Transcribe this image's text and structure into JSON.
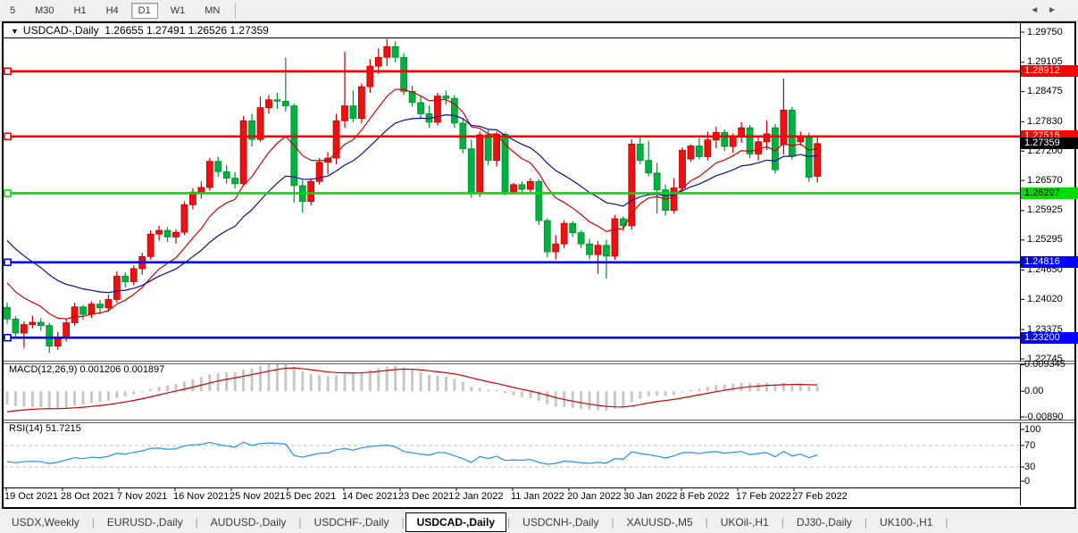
{
  "toolbar": {
    "timeframes": [
      "5",
      "M30",
      "H1",
      "H4",
      "D1",
      "W1",
      "MN"
    ],
    "active_timeframe": "D1"
  },
  "chart": {
    "symbol": "USDCAD-,Daily",
    "ohlc_text": "1.26655 1.27491 1.26526 1.27359",
    "macd_label": "MACD(12,26,9) 0.001206 0.001897",
    "rsi_label": "RSI(14) 51.7215"
  },
  "icons": {
    "dropdown_triangle": "▼",
    "tab_scroll_left": "◄",
    "tab_scroll_right": "►"
  },
  "tabs": {
    "items": [
      "USDX,Weekly",
      "EURUSD-,Daily",
      "AUDUSD-,Daily",
      "USDCHF-,Daily",
      "USDCAD-,Daily",
      "USDCNH-,Daily",
      "XAUUSD-,M5",
      "UKOil-,H1",
      "DJ30-,Daily",
      "UK100-,H1"
    ],
    "active": "USDCAD-,Daily"
  },
  "chart_data": {
    "type": "candlestick",
    "title": "USDCAD-,Daily",
    "current_ohlc": {
      "open": 1.26655,
      "high": 1.27491,
      "low": 1.26526,
      "close": 1.27359
    },
    "x_labels": [
      "19 Oct 2021",
      "28 Oct 2021",
      "7 Nov 2021",
      "16 Nov 2021",
      "25 Nov 2021",
      "5 Dec 2021",
      "14 Dec 2021",
      "23 Dec 2021",
      "2 Jan 2022",
      "11 Jan 2022",
      "20 Jan 2022",
      "30 Jan 2022",
      "8 Feb 2022",
      "17 Feb 2022",
      "27 Feb 2022"
    ],
    "price_axis": {
      "ticks": [
        "1.29750",
        "1.29105",
        "1.28475",
        "1.27830",
        "1.27200",
        "1.26570",
        "1.25925",
        "1.25295",
        "1.24650",
        "1.24020",
        "1.23375",
        "1.22745"
      ],
      "ylim": [
        1.22745,
        1.2975
      ]
    },
    "current_price_flag": {
      "label": "1.27359",
      "price": 1.27359,
      "bg": "#000000",
      "text": "#ffffff"
    },
    "hlines": [
      {
        "label": "1.28912",
        "price": 1.28912,
        "color": "#ff0000",
        "text": "#ffffff"
      },
      {
        "label": "1.27515",
        "price": 1.27515,
        "color": "#ff0000",
        "text": "#ffffff"
      },
      {
        "label": "1.26297",
        "price": 1.26297,
        "color": "#00dd00",
        "text": "#000000"
      },
      {
        "label": "1.24816",
        "price": 1.24816,
        "color": "#0000ff",
        "text": "#ffffff"
      },
      {
        "label": "1.23200",
        "price": 1.232,
        "color": "#0000ff",
        "text": "#ffffff"
      }
    ],
    "candles": [
      [
        1.2385,
        1.2395,
        1.235,
        1.236
      ],
      [
        1.236,
        1.2366,
        1.232,
        1.233
      ],
      [
        1.233,
        1.2355,
        1.2298,
        1.2348
      ],
      [
        1.2348,
        1.2367,
        1.234,
        1.2353
      ],
      [
        1.2353,
        1.2362,
        1.2335,
        1.2346
      ],
      [
        1.2346,
        1.2352,
        1.2287,
        1.2302
      ],
      [
        1.2302,
        1.2332,
        1.2294,
        1.232
      ],
      [
        1.232,
        1.236,
        1.2312,
        1.2352
      ],
      [
        1.2352,
        1.2395,
        1.2345,
        1.2386
      ],
      [
        1.2386,
        1.239,
        1.2358,
        1.237
      ],
      [
        1.237,
        1.2398,
        1.2362,
        1.2392
      ],
      [
        1.2392,
        1.2401,
        1.237,
        1.2384
      ],
      [
        1.2384,
        1.2412,
        1.2376,
        1.2402
      ],
      [
        1.2402,
        1.2462,
        1.2395,
        1.2452
      ],
      [
        1.2452,
        1.246,
        1.2428,
        1.244
      ],
      [
        1.244,
        1.2475,
        1.2432,
        1.2468
      ],
      [
        1.2468,
        1.2502,
        1.2455,
        1.2494
      ],
      [
        1.2494,
        1.255,
        1.2488,
        1.2542
      ],
      [
        1.2542,
        1.256,
        1.2528,
        1.255
      ],
      [
        1.255,
        1.2557,
        1.2525,
        1.2536
      ],
      [
        1.2536,
        1.2552,
        1.2522,
        1.2546
      ],
      [
        1.2546,
        1.2612,
        1.254,
        1.2605
      ],
      [
        1.2605,
        1.264,
        1.2595,
        1.2632
      ],
      [
        1.2632,
        1.2655,
        1.2618,
        1.2642
      ],
      [
        1.2642,
        1.2705,
        1.2635,
        1.2698
      ],
      [
        1.2698,
        1.2708,
        1.2665,
        1.2676
      ],
      [
        1.2676,
        1.269,
        1.265,
        1.2662
      ],
      [
        1.2662,
        1.2675,
        1.264,
        1.265
      ],
      [
        1.265,
        1.2795,
        1.2645,
        1.2785
      ],
      [
        1.2785,
        1.28,
        1.273,
        1.2745
      ],
      [
        1.2745,
        1.2837,
        1.274,
        1.2813
      ],
      [
        1.2813,
        1.284,
        1.28,
        1.283
      ],
      [
        1.283,
        1.2845,
        1.281,
        1.2827
      ],
      [
        1.2827,
        1.292,
        1.2805,
        1.2817
      ],
      [
        1.2817,
        1.2822,
        1.261,
        1.2646
      ],
      [
        1.2646,
        1.2658,
        1.2588,
        1.2612
      ],
      [
        1.2612,
        1.2662,
        1.2604,
        1.2655
      ],
      [
        1.2655,
        1.2705,
        1.2648,
        1.2696
      ],
      [
        1.2696,
        1.2718,
        1.267,
        1.2705
      ],
      [
        1.2705,
        1.28,
        1.2692,
        1.2785
      ],
      [
        1.2785,
        1.2933,
        1.277,
        1.2817
      ],
      [
        1.2817,
        1.285,
        1.2782,
        1.279
      ],
      [
        1.279,
        1.2865,
        1.278,
        1.2858
      ],
      [
        1.2858,
        1.2917,
        1.2845,
        1.2902
      ],
      [
        1.2902,
        1.294,
        1.2885,
        1.2921
      ],
      [
        1.2921,
        1.2963,
        1.2902,
        1.2944
      ],
      [
        1.2944,
        1.2955,
        1.291,
        1.2921
      ],
      [
        1.2921,
        1.293,
        1.284,
        1.2848
      ],
      [
        1.2848,
        1.286,
        1.2815,
        1.2824
      ],
      [
        1.2824,
        1.2837,
        1.279,
        1.28
      ],
      [
        1.28,
        1.2818,
        1.277,
        1.2782
      ],
      [
        1.2782,
        1.2845,
        1.2775,
        1.2838
      ],
      [
        1.2838,
        1.285,
        1.282,
        1.2833
      ],
      [
        1.2833,
        1.284,
        1.277,
        1.278
      ],
      [
        1.278,
        1.279,
        1.2715,
        1.2725
      ],
      [
        1.2725,
        1.2745,
        1.262,
        1.263
      ],
      [
        1.263,
        1.2762,
        1.2622,
        1.2755
      ],
      [
        1.2755,
        1.2765,
        1.269,
        1.27
      ],
      [
        1.27,
        1.2762,
        1.2687,
        1.2756
      ],
      [
        1.2756,
        1.276,
        1.2625,
        1.2633
      ],
      [
        1.2633,
        1.2652,
        1.2628,
        1.2648
      ],
      [
        1.2648,
        1.2655,
        1.263,
        1.2638
      ],
      [
        1.2638,
        1.2662,
        1.2632,
        1.2655
      ],
      [
        1.2655,
        1.266,
        1.2562,
        1.2571
      ],
      [
        1.2571,
        1.2576,
        1.2492,
        1.2504
      ],
      [
        1.2504,
        1.254,
        1.2488,
        1.2521
      ],
      [
        1.2521,
        1.2572,
        1.2512,
        1.2565
      ],
      [
        1.2565,
        1.257,
        1.2536,
        1.2545
      ],
      [
        1.2545,
        1.255,
        1.2512,
        1.2521
      ],
      [
        1.2521,
        1.2532,
        1.2488,
        1.2498
      ],
      [
        1.2498,
        1.2527,
        1.2457,
        1.2518
      ],
      [
        1.2518,
        1.253,
        1.2447,
        1.2495
      ],
      [
        1.2495,
        1.2583,
        1.2487,
        1.2575
      ],
      [
        1.2575,
        1.258,
        1.2548,
        1.256
      ],
      [
        1.256,
        1.2745,
        1.2552,
        1.2735
      ],
      [
        1.2735,
        1.275,
        1.2692,
        1.27
      ],
      [
        1.27,
        1.2742,
        1.2666,
        1.2673
      ],
      [
        1.2673,
        1.2695,
        1.2586,
        1.2637
      ],
      [
        1.2637,
        1.2648,
        1.2582,
        1.2593
      ],
      [
        1.2593,
        1.2662,
        1.2586,
        1.2641
      ],
      [
        1.2641,
        1.2728,
        1.2635,
        1.2722
      ],
      [
        1.2703,
        1.2735,
        1.2697,
        1.2731
      ],
      [
        1.2731,
        1.2748,
        1.2702,
        1.2708
      ],
      [
        1.2708,
        1.2762,
        1.27,
        1.2744
      ],
      [
        1.2744,
        1.2772,
        1.2726,
        1.276
      ],
      [
        1.276,
        1.2766,
        1.272,
        1.273
      ],
      [
        1.273,
        1.2758,
        1.2716,
        1.2751
      ],
      [
        1.2751,
        1.2782,
        1.2738,
        1.277
      ],
      [
        1.277,
        1.2776,
        1.2705,
        1.2714
      ],
      [
        1.2714,
        1.2752,
        1.27,
        1.274
      ],
      [
        1.274,
        1.2786,
        1.2722,
        1.2757
      ],
      [
        1.277,
        1.2778,
        1.2672,
        1.268
      ],
      [
        1.2734,
        1.2875,
        1.2713,
        1.2808
      ],
      [
        1.2808,
        1.2815,
        1.2702,
        1.2709
      ],
      [
        1.274,
        1.2762,
        1.2732,
        1.2752
      ],
      [
        1.2752,
        1.276,
        1.2654,
        1.2664
      ],
      [
        1.2666,
        1.2749,
        1.2653,
        1.2736
      ]
    ],
    "indicators": {
      "ma_fast": {
        "type": "ema",
        "period": 10,
        "seed": 1.2455,
        "color": "#d40000"
      },
      "ma_slow": {
        "type": "ema",
        "period": 21,
        "seed": 1.2545,
        "color": "#0b0b9e"
      },
      "macd": {
        "params": "12,26,9",
        "value": 0.001206,
        "signal": 0.001897,
        "seed_fast": 1.2452,
        "seed_slow": 1.2492,
        "seed_signal": -0.0075,
        "axis_labels": [
          "0.009345",
          "0.00",
          "-0.00890"
        ],
        "hist_color": "#c8c8c8",
        "signal_color": "#d40000"
      },
      "rsi": {
        "params": "14",
        "value": 51.7215,
        "seed_gain": 0.0016,
        "seed_loss": 0.0024,
        "axis_labels": [
          "100",
          "70",
          "30",
          "0"
        ],
        "levels": [
          70,
          30
        ],
        "line_color": "#1e90ff",
        "level_color": "#c0c0c0"
      }
    },
    "colors": {
      "up_fill": "#ee1111",
      "up_border": "#c00000",
      "down_fill": "#00b140",
      "down_border": "#008f2f",
      "background": "#ffffff"
    }
  }
}
